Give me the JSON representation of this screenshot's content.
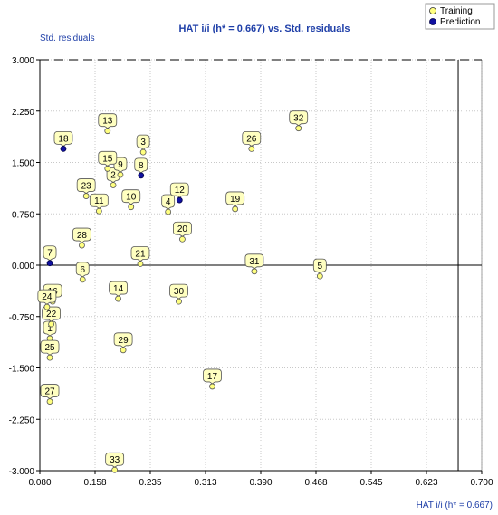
{
  "chart_data": {
    "type": "scatter",
    "title": "HAT i/i (h* = 0.667) vs. Std. residuals",
    "xlabel": "HAT i/i (h* = 0.667)",
    "ylabel": "Std. residuals",
    "xlim": [
      0.08,
      0.7
    ],
    "ylim": [
      -3.0,
      3.0
    ],
    "x_ticks": [
      "0.080",
      "0.158",
      "0.235",
      "0.313",
      "0.390",
      "0.468",
      "0.545",
      "0.623",
      "0.700"
    ],
    "y_ticks": [
      "3.000",
      "2.250",
      "1.500",
      "0.750",
      "0.000",
      "-0.750",
      "-1.500",
      "-2.250",
      "-3.000"
    ],
    "x_tick_values": [
      0.08,
      0.1575,
      0.235,
      0.3125,
      0.39,
      0.4675,
      0.545,
      0.6225,
      0.7
    ],
    "y_tick_values": [
      3.0,
      2.25,
      1.5,
      0.75,
      0.0,
      -0.75,
      -1.5,
      -2.25,
      -3.0
    ],
    "reference_lines": {
      "h_star": 0.667,
      "y_upper": 3.0,
      "y_lower": -3.0,
      "y_zero": 0.0
    },
    "colors": {
      "training": "#ffff80",
      "prediction": "#1010a0",
      "axis_text": "#1f3fa8",
      "label_fill": "#ffffc0"
    },
    "legend": {
      "position": "top-right",
      "entries": [
        "Training",
        "Prediction"
      ]
    },
    "series": [
      {
        "name": "Training",
        "points": [
          {
            "label": "1",
            "x": 0.094,
            "y": -1.07
          },
          {
            "label": "2",
            "x": 0.183,
            "y": 1.17
          },
          {
            "label": "3",
            "x": 0.225,
            "y": 1.65
          },
          {
            "label": "4",
            "x": 0.26,
            "y": 0.78
          },
          {
            "label": "5",
            "x": 0.473,
            "y": -0.16
          },
          {
            "label": "6",
            "x": 0.14,
            "y": -0.21
          },
          {
            "label": "9",
            "x": 0.193,
            "y": 1.32
          },
          {
            "label": "10",
            "x": 0.208,
            "y": 0.85
          },
          {
            "label": "11",
            "x": 0.163,
            "y": 0.79
          },
          {
            "label": "13",
            "x": 0.175,
            "y": 1.96
          },
          {
            "label": "14",
            "x": 0.19,
            "y": -0.49
          },
          {
            "label": "15",
            "x": 0.175,
            "y": 1.41
          },
          {
            "label": "16",
            "x": 0.098,
            "y": -0.53
          },
          {
            "label": "17",
            "x": 0.322,
            "y": -1.77
          },
          {
            "label": "19",
            "x": 0.354,
            "y": 0.82
          },
          {
            "label": "20",
            "x": 0.28,
            "y": 0.38
          },
          {
            "label": "21",
            "x": 0.221,
            "y": 0.02
          },
          {
            "label": "22",
            "x": 0.096,
            "y": -0.86
          },
          {
            "label": "23",
            "x": 0.145,
            "y": 1.01
          },
          {
            "label": "24",
            "x": 0.09,
            "y": -0.61
          },
          {
            "label": "25",
            "x": 0.094,
            "y": -1.35
          },
          {
            "label": "26",
            "x": 0.377,
            "y": 1.7
          },
          {
            "label": "27",
            "x": 0.094,
            "y": -1.99
          },
          {
            "label": "28",
            "x": 0.139,
            "y": 0.29
          },
          {
            "label": "29",
            "x": 0.197,
            "y": -1.24
          },
          {
            "label": "30",
            "x": 0.275,
            "y": -0.53
          },
          {
            "label": "31",
            "x": 0.381,
            "y": -0.09
          },
          {
            "label": "32",
            "x": 0.443,
            "y": 2.0
          },
          {
            "label": "33",
            "x": 0.185,
            "y": -2.99
          }
        ]
      },
      {
        "name": "Prediction",
        "points": [
          {
            "label": "7",
            "x": 0.094,
            "y": 0.03
          },
          {
            "label": "8",
            "x": 0.222,
            "y": 1.31
          },
          {
            "label": "12",
            "x": 0.276,
            "y": 0.95
          },
          {
            "label": "18",
            "x": 0.113,
            "y": 1.7
          }
        ]
      }
    ]
  }
}
